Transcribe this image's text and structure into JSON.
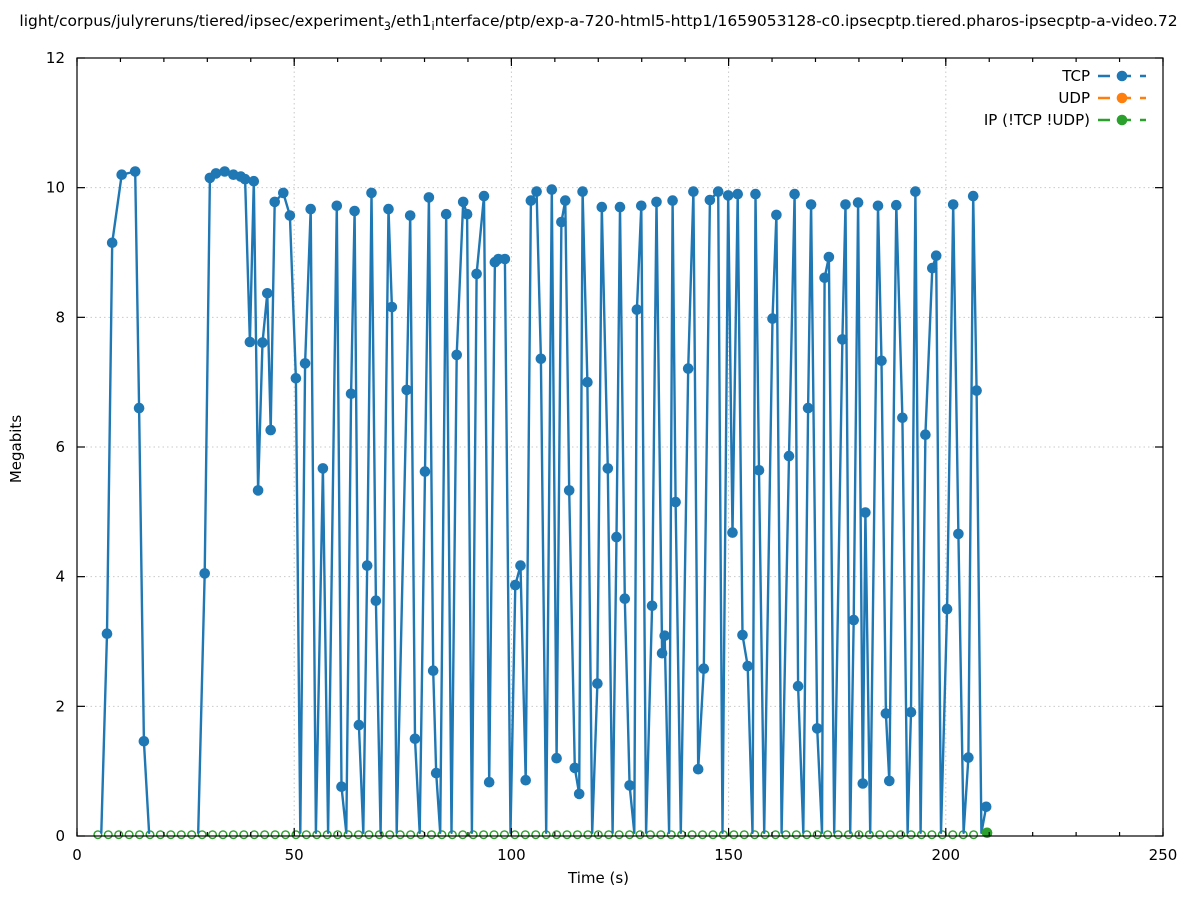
{
  "title": {
    "part1": "light/corpus/julyreruns/tiered/ipsec/experiment",
    "sub1": "3",
    "part2": "/eth1",
    "sub2": "i",
    "part3": "nterface/ptp/exp-a-720-html5-http1/1659053128-c0.ipsecptp.tiered.pharos-ipsecptp-a-video.72"
  },
  "chart_data": {
    "type": "line",
    "title": "light/corpus/julyreruns/tiered/ipsec/experiment_3/eth1_interface/ptp/exp-a-720-html5-http1/1659053128-c0.ipsecptp.tiered.pharos-ipsecptp-a-video.72",
    "xlabel": "Time (s)",
    "ylabel": "Megabits",
    "xlim": [
      0,
      250
    ],
    "ylim": [
      0,
      12
    ],
    "x_ticks": [
      0,
      50,
      100,
      150,
      200,
      250
    ],
    "y_ticks": [
      0,
      2,
      4,
      6,
      8,
      10,
      12
    ],
    "x_minor_tick_step": 10,
    "grid": true,
    "legend_position": "top-right",
    "colors": {
      "tcp": "#1f77b4",
      "udp": "#ff7f0e",
      "ip": "#2ca02c",
      "grid": "#c9c9c9",
      "border": "#000000"
    },
    "series": [
      {
        "name": "TCP",
        "color": "#1f77b4",
        "style": "lines-points",
        "points": [
          [
            5.6,
            0.05
          ],
          [
            6.9,
            3.12
          ],
          [
            8.1,
            9.15
          ],
          [
            10.3,
            10.2
          ],
          [
            13.4,
            10.25
          ],
          [
            14.3,
            6.6
          ],
          [
            15.4,
            1.46
          ],
          [
            16.6,
            0.05
          ],
          [
            27.9,
            0.05
          ],
          [
            29.4,
            4.05
          ],
          [
            30.6,
            10.15
          ],
          [
            32,
            10.22
          ],
          [
            34,
            10.25
          ],
          [
            36,
            10.2
          ],
          [
            37.7,
            10.17
          ],
          [
            38.7,
            10.13
          ],
          [
            39.8,
            7.62
          ],
          [
            40.7,
            10.1
          ],
          [
            41.7,
            5.33
          ],
          [
            42.7,
            7.61
          ],
          [
            43.8,
            8.37
          ],
          [
            44.6,
            6.26
          ],
          [
            45.5,
            9.78
          ],
          [
            47.5,
            9.92
          ],
          [
            49,
            9.57
          ],
          [
            50.4,
            7.06
          ],
          [
            51.4,
            0.05
          ],
          [
            52.5,
            7.29
          ],
          [
            53.8,
            9.67
          ],
          [
            55,
            0.05
          ],
          [
            56.6,
            5.67
          ],
          [
            57.8,
            0.05
          ],
          [
            59.8,
            9.72
          ],
          [
            60.9,
            0.76
          ],
          [
            62,
            0.05
          ],
          [
            63.1,
            6.82
          ],
          [
            63.9,
            9.64
          ],
          [
            64.9,
            1.71
          ],
          [
            65.9,
            0.05
          ],
          [
            66.8,
            4.17
          ],
          [
            67.8,
            9.92
          ],
          [
            68.8,
            3.63
          ],
          [
            69.9,
            0.05
          ],
          [
            71.7,
            9.67
          ],
          [
            72.5,
            8.16
          ],
          [
            73.6,
            0.05
          ],
          [
            75.9,
            6.88
          ],
          [
            76.7,
            9.57
          ],
          [
            77.8,
            1.5
          ],
          [
            78.9,
            0.05
          ],
          [
            80.1,
            5.62
          ],
          [
            81,
            9.85
          ],
          [
            82,
            2.55
          ],
          [
            82.7,
            0.97
          ],
          [
            83.6,
            0.05
          ],
          [
            85,
            9.59
          ],
          [
            86.2,
            0.05
          ],
          [
            87.4,
            7.42
          ],
          [
            88.9,
            9.78
          ],
          [
            89.8,
            9.59
          ],
          [
            90.9,
            0.05
          ],
          [
            92,
            8.67
          ],
          [
            93.7,
            9.87
          ],
          [
            94.9,
            0.83
          ],
          [
            96.2,
            8.85
          ],
          [
            97,
            8.9
          ],
          [
            98.5,
            8.9
          ],
          [
            99.8,
            0.05
          ],
          [
            100.9,
            3.87
          ],
          [
            102.1,
            4.17
          ],
          [
            103.3,
            0.86
          ],
          [
            104.5,
            9.8
          ],
          [
            105.8,
            9.94
          ],
          [
            106.8,
            7.36
          ],
          [
            108,
            0.05
          ],
          [
            109.3,
            9.97
          ],
          [
            110.4,
            1.2
          ],
          [
            111.5,
            9.47
          ],
          [
            112.4,
            9.8
          ],
          [
            113.3,
            5.33
          ],
          [
            114.6,
            1.05
          ],
          [
            115.6,
            0.65
          ],
          [
            116.4,
            9.94
          ],
          [
            117.5,
            7.0
          ],
          [
            118.6,
            0.05
          ],
          [
            119.8,
            2.35
          ],
          [
            120.8,
            9.7
          ],
          [
            122.2,
            5.67
          ],
          [
            123.3,
            0.05
          ],
          [
            124.2,
            4.61
          ],
          [
            125,
            9.7
          ],
          [
            126.1,
            3.66
          ],
          [
            127.2,
            0.78
          ],
          [
            128.3,
            0.05
          ],
          [
            128.9,
            8.12
          ],
          [
            129.9,
            9.72
          ],
          [
            131,
            0.05
          ],
          [
            132.4,
            3.55
          ],
          [
            133.4,
            9.78
          ],
          [
            134.7,
            2.82
          ],
          [
            135.3,
            3.09
          ],
          [
            136.3,
            0.05
          ],
          [
            137.1,
            9.8
          ],
          [
            137.8,
            5.15
          ],
          [
            139,
            0.05
          ],
          [
            140.7,
            7.21
          ],
          [
            141.9,
            9.94
          ],
          [
            143,
            1.03
          ],
          [
            144.3,
            2.58
          ],
          [
            145.7,
            9.81
          ],
          [
            147.6,
            9.94
          ],
          [
            148.6,
            0.05
          ],
          [
            149.9,
            9.88
          ],
          [
            150.9,
            4.68
          ],
          [
            152.1,
            9.9
          ],
          [
            153.2,
            3.1
          ],
          [
            154.4,
            2.62
          ],
          [
            155.5,
            0.05
          ],
          [
            156.2,
            9.9
          ],
          [
            157,
            5.64
          ],
          [
            158.2,
            0.05
          ],
          [
            160.1,
            7.98
          ],
          [
            161,
            9.58
          ],
          [
            162.2,
            0.05
          ],
          [
            163.9,
            5.86
          ],
          [
            165.2,
            9.9
          ],
          [
            166,
            2.31
          ],
          [
            167.2,
            0.05
          ],
          [
            168.3,
            6.6
          ],
          [
            169,
            9.74
          ],
          [
            170.4,
            1.66
          ],
          [
            171.5,
            0.05
          ],
          [
            172.1,
            8.61
          ],
          [
            173.1,
            8.93
          ],
          [
            174.3,
            0.05
          ],
          [
            176.2,
            7.66
          ],
          [
            176.9,
            9.74
          ],
          [
            178,
            0.05
          ],
          [
            178.8,
            3.33
          ],
          [
            179.8,
            9.77
          ],
          [
            180.9,
            0.81
          ],
          [
            181.5,
            4.99
          ],
          [
            182.6,
            0.05
          ],
          [
            184.4,
            9.72
          ],
          [
            185.2,
            7.33
          ],
          [
            186.2,
            1.89
          ],
          [
            187,
            0.85
          ],
          [
            188.6,
            9.73
          ],
          [
            190,
            6.45
          ],
          [
            191.2,
            0.05
          ],
          [
            192,
            1.91
          ],
          [
            193,
            9.94
          ],
          [
            194.2,
            0.05
          ],
          [
            195.3,
            6.19
          ],
          [
            196.9,
            8.76
          ],
          [
            197.8,
            8.95
          ],
          [
            198.9,
            0.05
          ],
          [
            200.3,
            3.5
          ],
          [
            201.7,
            9.74
          ],
          [
            202.9,
            4.66
          ],
          [
            204.1,
            0.05
          ],
          [
            205.2,
            1.21
          ],
          [
            206.3,
            9.87
          ],
          [
            207.1,
            6.87
          ],
          [
            208.2,
            0.05
          ],
          [
            209.3,
            0.45
          ]
        ]
      },
      {
        "name": "UDP",
        "color": "#ff7f0e",
        "style": "lines-points",
        "points": []
      },
      {
        "name": "IP (!TCP  !UDP)",
        "color": "#2ca02c",
        "style": "lines-points",
        "baseline_marks_x": [
          4.8,
          7.2,
          9.6,
          12,
          14.4,
          16.8,
          19.2,
          21.6,
          24,
          26.4,
          28.8,
          31.2,
          33.6,
          36,
          38.4,
          40.8,
          43.2,
          45.6,
          48,
          50.4,
          52.8,
          55.2,
          57.6,
          60,
          62.4,
          64.8,
          67.2,
          69.6,
          72,
          74.4,
          76.8,
          79.2,
          81.6,
          84,
          86.4,
          88.8,
          91.2,
          93.6,
          96,
          98.4,
          100.8,
          103.2,
          105.6,
          108,
          110.4,
          112.8,
          115.2,
          117.6,
          120,
          122.4,
          124.8,
          127.2,
          129.6,
          132,
          134.4,
          136.8,
          139.2,
          141.6,
          144,
          146.4,
          148.8,
          151.2,
          153.6,
          156,
          158.4,
          160.8,
          163.2,
          165.6,
          168,
          170.4,
          172.8,
          175.2,
          177.6,
          180,
          182.4,
          184.8,
          187.2,
          189.6,
          192,
          194.4,
          196.8,
          199.2,
          201.6,
          204,
          206.4
        ],
        "baseline_value": 0.02,
        "final_point": [
          209.5,
          0.05
        ],
        "points": []
      }
    ]
  },
  "labels": {
    "ylabel": "Megabits",
    "xlabel": "Time (s)"
  },
  "legend": [
    {
      "label": "TCP",
      "color": "#1f77b4"
    },
    {
      "label": "UDP",
      "color": "#ff7f0e"
    },
    {
      "label": "IP (!TCP  !UDP)",
      "color": "#2ca02c"
    }
  ]
}
